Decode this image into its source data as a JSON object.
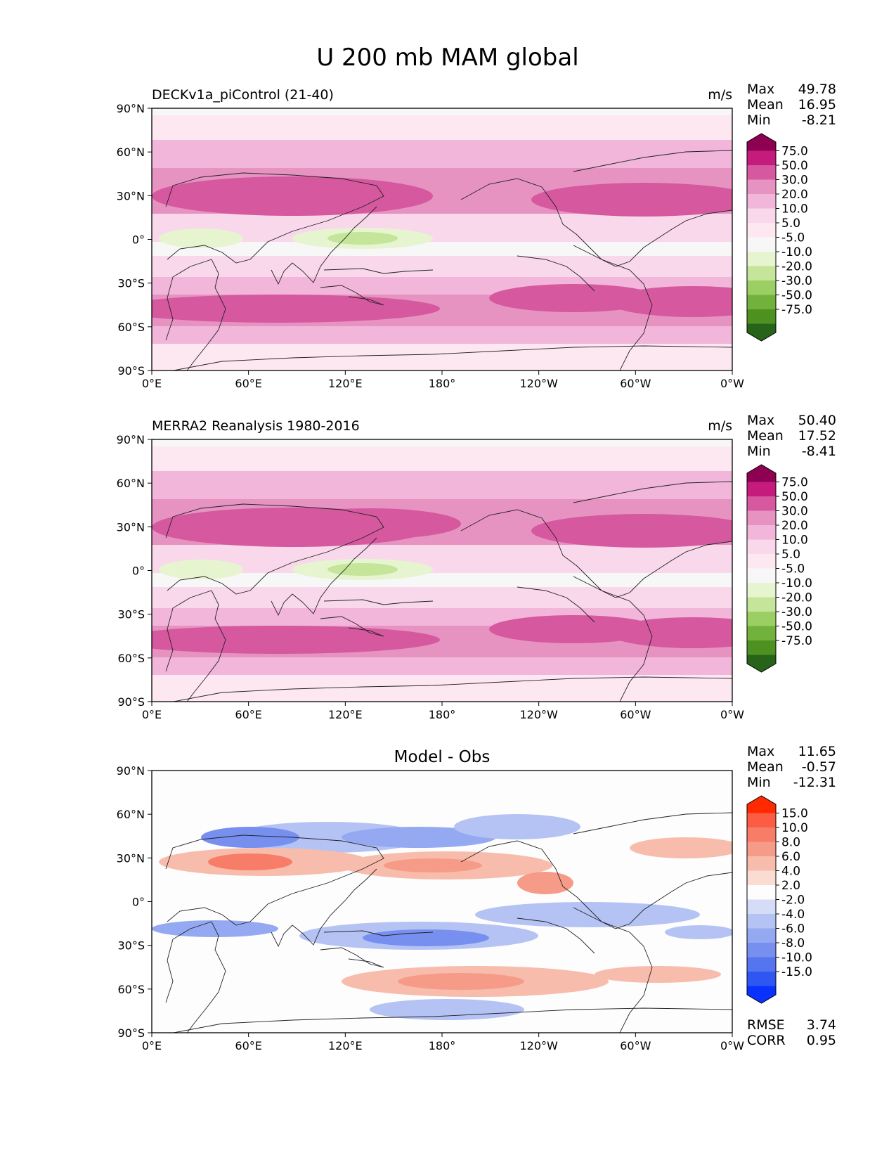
{
  "figure": {
    "title": "U 200 mb MAM global"
  },
  "panels": [
    {
      "id": "model",
      "left_title": "DECKv1a_piControl (21-40)",
      "center_title": "",
      "units": "m/s",
      "stats": [
        {
          "label": "Max",
          "value": "49.78"
        },
        {
          "label": "Mean",
          "value": "16.95"
        },
        {
          "label": "Min",
          "value": "-8.21"
        }
      ],
      "colorbar": "field",
      "bottom_stats": []
    },
    {
      "id": "obs",
      "left_title": "MERRA2 Reanalysis 1980-2016",
      "center_title": "",
      "units": "m/s",
      "stats": [
        {
          "label": "Max",
          "value": "50.40"
        },
        {
          "label": "Mean",
          "value": "17.52"
        },
        {
          "label": "Min",
          "value": "-8.41"
        }
      ],
      "colorbar": "field",
      "bottom_stats": []
    },
    {
      "id": "diff",
      "left_title": "",
      "center_title": "Model - Obs",
      "units": "",
      "stats": [
        {
          "label": "Max",
          "value": "11.65"
        },
        {
          "label": "Mean",
          "value": "-0.57"
        },
        {
          "label": "Min",
          "value": "-12.31"
        }
      ],
      "colorbar": "diff",
      "bottom_stats": [
        {
          "label": "RMSE",
          "value": "3.74"
        },
        {
          "label": "CORR",
          "value": "0.95"
        }
      ]
    }
  ],
  "axes": {
    "lat_ticks": [
      "90°N",
      "60°N",
      "30°N",
      "0°",
      "30°S",
      "60°S",
      "90°S"
    ],
    "lon_ticks": [
      "0°E",
      "60°E",
      "120°E",
      "180°",
      "120°W",
      "60°W",
      "0°W"
    ]
  },
  "colorbars": {
    "field": {
      "labels": [
        "75.0",
        "50.0",
        "30.0",
        "20.0",
        "10.0",
        "5.0",
        "-5.0",
        "-10.0",
        "-20.0",
        "-30.0",
        "-50.0",
        "-75.0"
      ],
      "colors": [
        "#8e0152",
        "#c51b7d",
        "#d6589f",
        "#e693c2",
        "#f1b6da",
        "#f8d8ea",
        "#fde8f2",
        "#f7f7f7",
        "#e6f5d0",
        "#c4e59a",
        "#9bcf63",
        "#72b23c",
        "#4d9221",
        "#276419"
      ]
    },
    "diff": {
      "labels": [
        "15.0",
        "10.0",
        "8.0",
        "6.0",
        "4.0",
        "2.0",
        "-2.0",
        "-4.0",
        "-6.0",
        "-8.0",
        "-10.0",
        "-15.0"
      ],
      "colors": [
        "#ff2a00",
        "#fb5c43",
        "#f77d68",
        "#f69b88",
        "#f8bcad",
        "#fadcd2",
        "#fdfdfd",
        "#d4dcf7",
        "#b5c3f4",
        "#95a9f2",
        "#7790f0",
        "#5574ef",
        "#2e57f2",
        "#0a32ff"
      ]
    }
  }
}
